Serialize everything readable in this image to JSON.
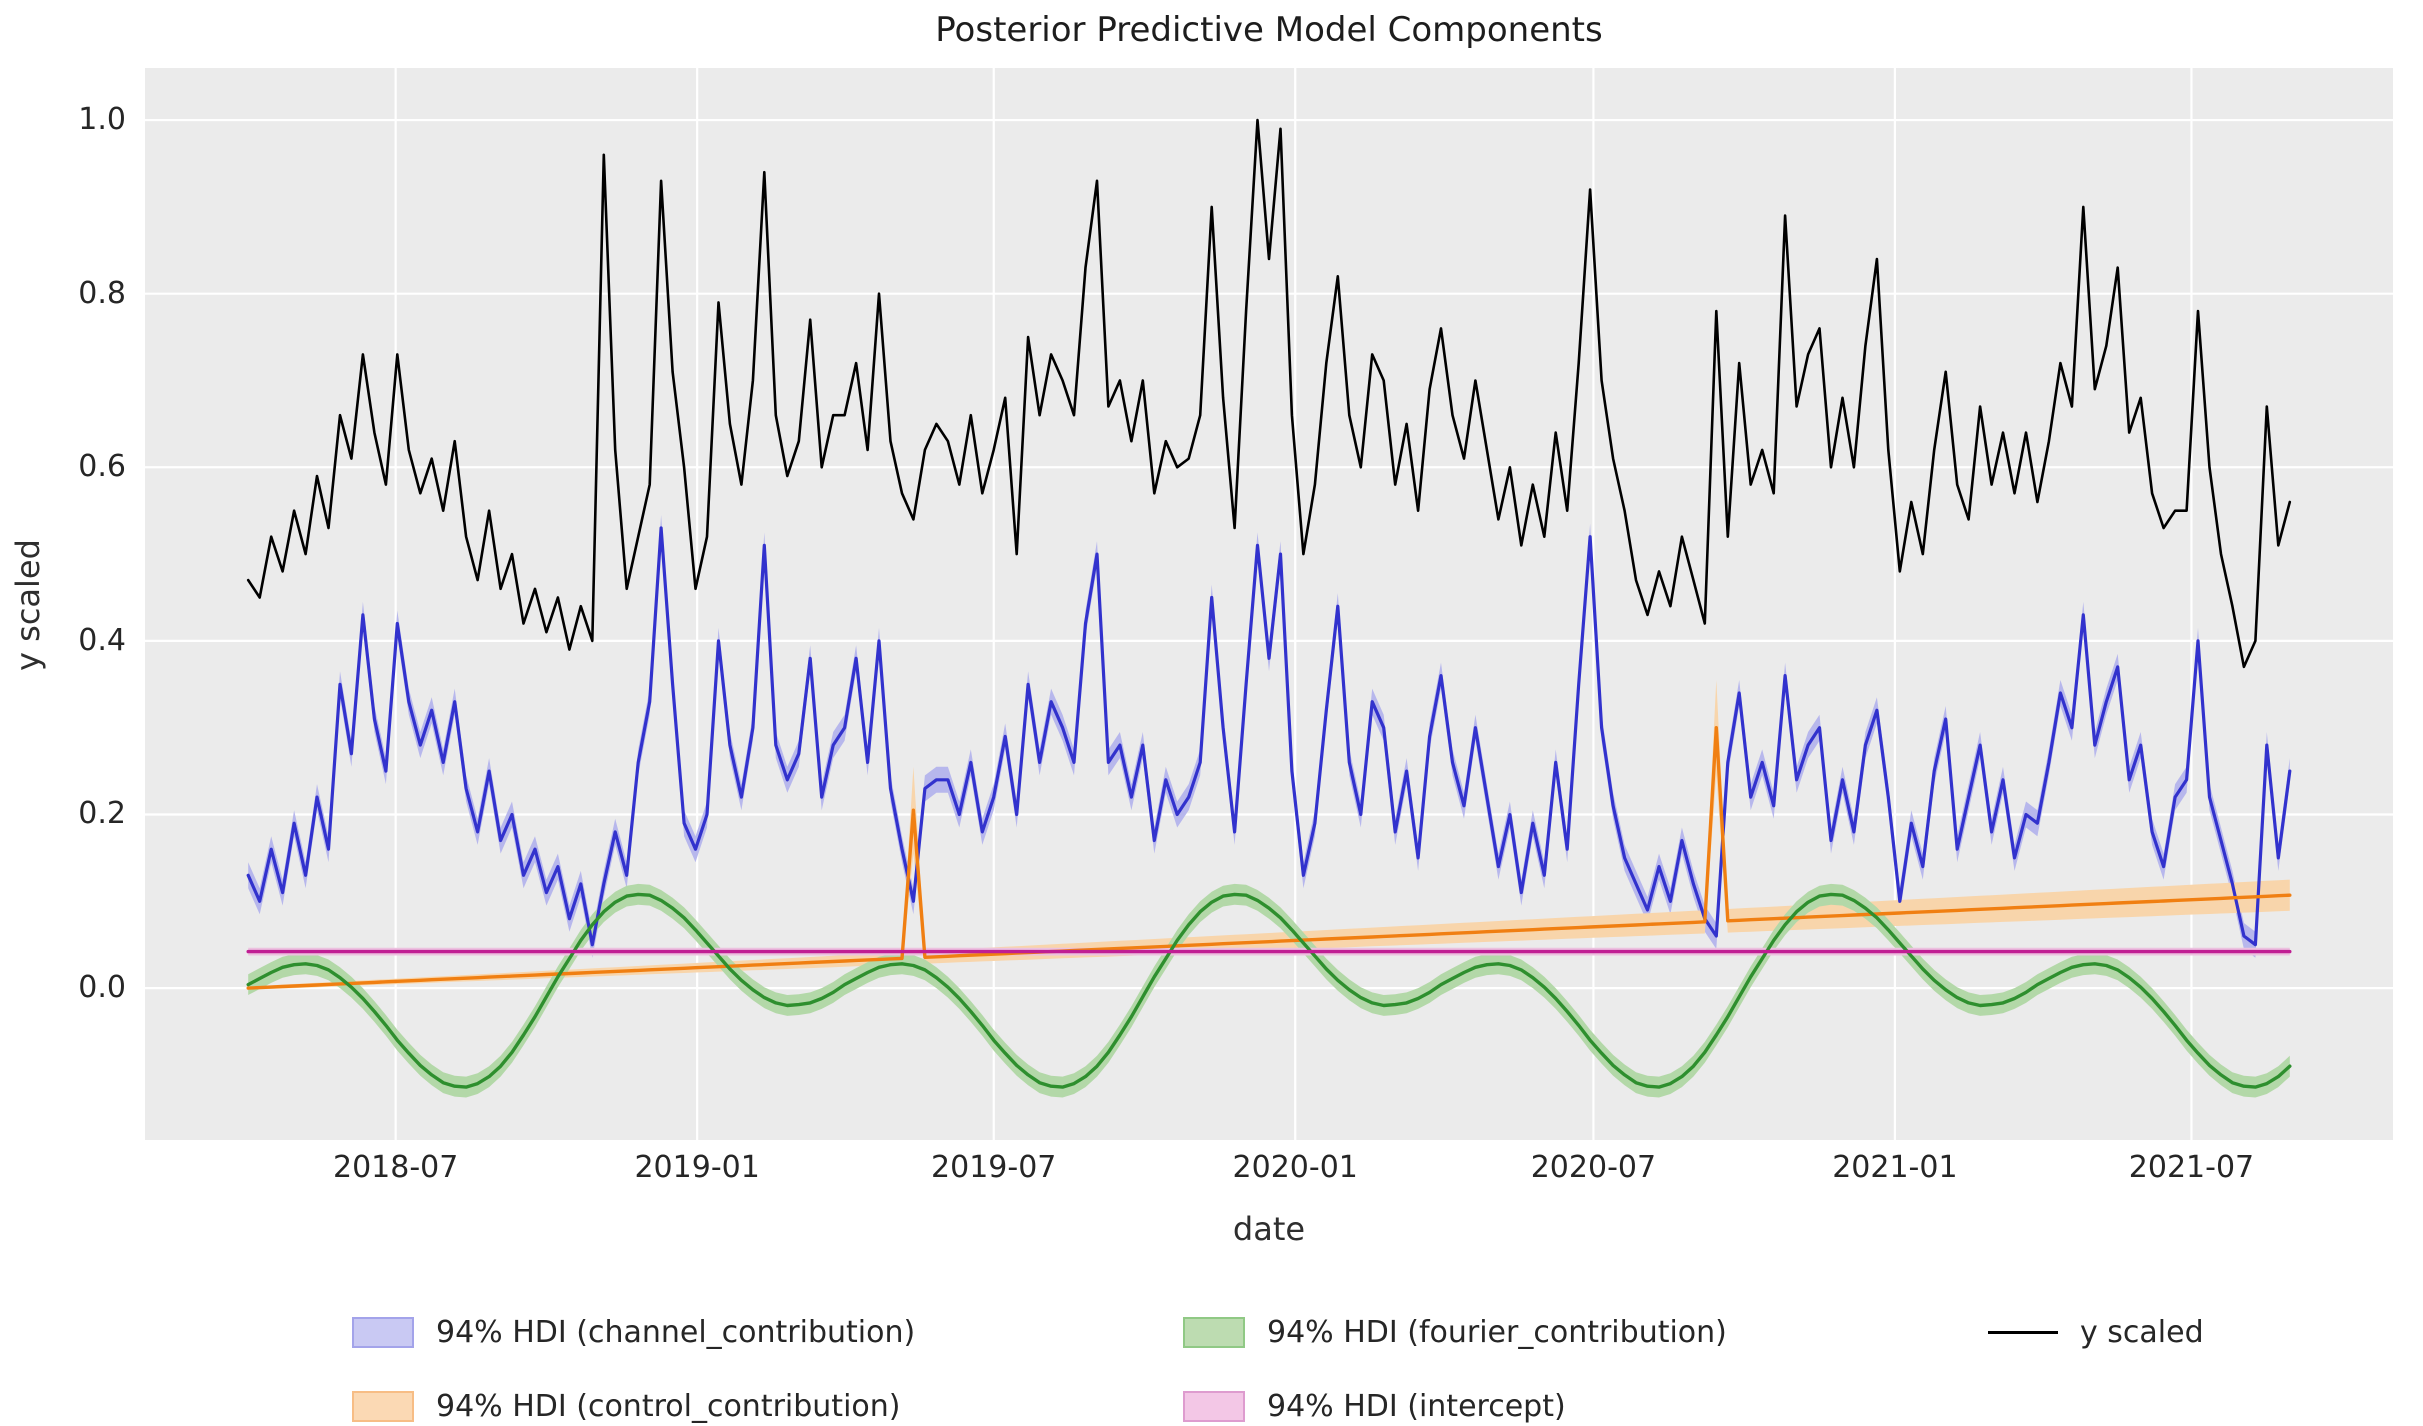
{
  "title": "Posterior Predictive Model Components",
  "axes": {
    "xlabel": "date",
    "ylabel": "y scaled",
    "plot_bg": "#ebebeb",
    "grid_color": "#ffffff",
    "text_color": "#262626",
    "xlim_days": [
      -63,
      1309
    ],
    "ylim": [
      -0.175,
      1.06
    ],
    "x_ticks": [
      {
        "day": 90,
        "label": "2018-07"
      },
      {
        "day": 274,
        "label": "2019-01"
      },
      {
        "day": 455,
        "label": "2019-07"
      },
      {
        "day": 639,
        "label": "2020-01"
      },
      {
        "day": 821,
        "label": "2020-07"
      },
      {
        "day": 1005,
        "label": "2021-01"
      },
      {
        "day": 1186,
        "label": "2021-07"
      }
    ],
    "y_ticks": [
      {
        "v": 1.0,
        "label": "1.0"
      },
      {
        "v": 0.8,
        "label": "0.8"
      },
      {
        "v": 0.6,
        "label": "0.6"
      },
      {
        "v": 0.4,
        "label": "0.4"
      },
      {
        "v": 0.2,
        "label": "0.2"
      },
      {
        "v": 0.0,
        "label": "0.0"
      }
    ]
  },
  "chart_data": {
    "type": "line",
    "title": "Posterior Predictive Model Components",
    "xlabel": "date",
    "ylabel": "y scaled",
    "grid": true,
    "legend_position": "below",
    "x": {
      "start_date": "2018-04-02",
      "interval_days": 7,
      "n": 179
    },
    "series": [
      {
        "name": "y scaled",
        "kind": "line",
        "color": "#000000",
        "linewidth": 2.6,
        "values": [
          0.47,
          0.45,
          0.52,
          0.48,
          0.55,
          0.5,
          0.59,
          0.53,
          0.66,
          0.61,
          0.73,
          0.64,
          0.58,
          0.73,
          0.62,
          0.57,
          0.61,
          0.55,
          0.63,
          0.52,
          0.47,
          0.55,
          0.46,
          0.5,
          0.42,
          0.46,
          0.41,
          0.45,
          0.39,
          0.44,
          0.4,
          0.96,
          0.62,
          0.46,
          0.52,
          0.58,
          0.93,
          0.71,
          0.6,
          0.46,
          0.52,
          0.79,
          0.65,
          0.58,
          0.7,
          0.94,
          0.66,
          0.59,
          0.63,
          0.77,
          0.6,
          0.66,
          0.66,
          0.72,
          0.62,
          0.8,
          0.63,
          0.57,
          0.54,
          0.62,
          0.65,
          0.63,
          0.58,
          0.66,
          0.57,
          0.62,
          0.68,
          0.5,
          0.75,
          0.66,
          0.73,
          0.7,
          0.66,
          0.83,
          0.93,
          0.67,
          0.7,
          0.63,
          0.7,
          0.57,
          0.63,
          0.6,
          0.61,
          0.66,
          0.9,
          0.68,
          0.53,
          0.78,
          1.0,
          0.84,
          0.99,
          0.66,
          0.5,
          0.58,
          0.72,
          0.82,
          0.66,
          0.6,
          0.73,
          0.7,
          0.58,
          0.65,
          0.55,
          0.69,
          0.76,
          0.66,
          0.61,
          0.7,
          0.62,
          0.54,
          0.6,
          0.51,
          0.58,
          0.52,
          0.64,
          0.55,
          0.72,
          0.92,
          0.7,
          0.61,
          0.55,
          0.47,
          0.43,
          0.48,
          0.44,
          0.52,
          0.47,
          0.42,
          0.78,
          0.52,
          0.72,
          0.58,
          0.62,
          0.57,
          0.89,
          0.67,
          0.73,
          0.76,
          0.6,
          0.68,
          0.6,
          0.74,
          0.84,
          0.62,
          0.48,
          0.56,
          0.5,
          0.62,
          0.71,
          0.58,
          0.54,
          0.67,
          0.58,
          0.64,
          0.57,
          0.64,
          0.56,
          0.63,
          0.72,
          0.67,
          0.9,
          0.69,
          0.74,
          0.83,
          0.64,
          0.68,
          0.57,
          0.53,
          0.55,
          0.55,
          0.78,
          0.6,
          0.5,
          0.44,
          0.37,
          0.4,
          0.67,
          0.51,
          0.56
        ]
      },
      {
        "name": "94% HDI (channel_contribution)",
        "kind": "band+line",
        "line_color": "#3232cd",
        "band_color": "#b7b7ec",
        "linewidth": 3.2,
        "hdi_halfwidth": 0.015,
        "values": [
          0.13,
          0.1,
          0.16,
          0.11,
          0.19,
          0.13,
          0.22,
          0.16,
          0.35,
          0.27,
          0.43,
          0.31,
          0.25,
          0.42,
          0.33,
          0.28,
          0.32,
          0.26,
          0.33,
          0.23,
          0.18,
          0.25,
          0.17,
          0.2,
          0.13,
          0.16,
          0.11,
          0.14,
          0.08,
          0.12,
          0.05,
          0.12,
          0.18,
          0.13,
          0.26,
          0.33,
          0.53,
          0.35,
          0.19,
          0.16,
          0.2,
          0.4,
          0.28,
          0.22,
          0.3,
          0.51,
          0.28,
          0.24,
          0.27,
          0.38,
          0.22,
          0.28,
          0.3,
          0.38,
          0.26,
          0.4,
          0.23,
          0.16,
          0.1,
          0.23,
          0.24,
          0.24,
          0.2,
          0.26,
          0.18,
          0.22,
          0.29,
          0.2,
          0.35,
          0.26,
          0.33,
          0.3,
          0.26,
          0.42,
          0.5,
          0.26,
          0.28,
          0.22,
          0.28,
          0.17,
          0.24,
          0.2,
          0.22,
          0.26,
          0.45,
          0.3,
          0.18,
          0.35,
          0.51,
          0.38,
          0.5,
          0.25,
          0.13,
          0.19,
          0.32,
          0.44,
          0.26,
          0.2,
          0.33,
          0.3,
          0.18,
          0.25,
          0.15,
          0.29,
          0.36,
          0.26,
          0.21,
          0.3,
          0.22,
          0.14,
          0.2,
          0.11,
          0.19,
          0.13,
          0.26,
          0.16,
          0.35,
          0.52,
          0.3,
          0.21,
          0.15,
          0.12,
          0.09,
          0.14,
          0.1,
          0.17,
          0.12,
          0.08,
          0.06,
          0.26,
          0.34,
          0.22,
          0.26,
          0.21,
          0.36,
          0.24,
          0.28,
          0.3,
          0.17,
          0.24,
          0.18,
          0.28,
          0.32,
          0.22,
          0.1,
          0.19,
          0.14,
          0.25,
          0.31,
          0.16,
          0.22,
          0.28,
          0.18,
          0.24,
          0.15,
          0.2,
          0.19,
          0.26,
          0.34,
          0.3,
          0.43,
          0.28,
          0.33,
          0.37,
          0.24,
          0.28,
          0.18,
          0.14,
          0.22,
          0.24,
          0.4,
          0.22,
          0.17,
          0.12,
          0.06,
          0.05,
          0.28,
          0.15,
          0.25
        ]
      },
      {
        "name": "94% HDI (control_contribution)",
        "kind": "band+line",
        "line_color": "#f07f12",
        "band_color": "#f8d5ab",
        "linewidth": 3.4,
        "trend": {
          "start": 0.0,
          "end": 0.107
        },
        "hdi_halfwidth": {
          "start": 0.002,
          "end": 0.018
        },
        "spikes": [
          {
            "index": 58,
            "date": "2019-05-13",
            "value": 0.205,
            "hdi_halfwidth": 0.05
          },
          {
            "index": 128,
            "date": "2020-09-14",
            "value": 0.3,
            "hdi_halfwidth": 0.055
          }
        ]
      },
      {
        "name": "94% HDI (fourier_contribution)",
        "kind": "band+line",
        "line_color": "#2e8f2e",
        "band_color": "#b3d8a8",
        "linewidth": 3.4,
        "hdi_halfwidth": 0.012,
        "values": [
          0.004,
          0.011,
          0.018,
          0.024,
          0.027,
          0.028,
          0.026,
          0.021,
          0.012,
          0.001,
          -0.012,
          -0.027,
          -0.043,
          -0.06,
          -0.075,
          -0.089,
          -0.1,
          -0.109,
          -0.113,
          -0.114,
          -0.11,
          -0.102,
          -0.09,
          -0.074,
          -0.054,
          -0.033,
          -0.01,
          0.013,
          0.034,
          0.055,
          0.073,
          0.088,
          0.099,
          0.106,
          0.108,
          0.107,
          0.101,
          0.092,
          0.081,
          0.067,
          0.052,
          0.037,
          0.022,
          0.009,
          -0.002,
          -0.011,
          -0.017,
          -0.02,
          -0.019,
          -0.017,
          -0.012,
          -0.005,
          0.004,
          0.011,
          0.018,
          0.024,
          0.027,
          0.028,
          0.026,
          0.021,
          0.012,
          0.001,
          -0.012,
          -0.027,
          -0.043,
          -0.06,
          -0.075,
          -0.089,
          -0.1,
          -0.109,
          -0.113,
          -0.114,
          -0.11,
          -0.102,
          -0.09,
          -0.074,
          -0.054,
          -0.033,
          -0.01,
          0.013,
          0.034,
          0.055,
          0.073,
          0.088,
          0.099,
          0.106,
          0.108,
          0.107,
          0.101,
          0.092,
          0.081,
          0.067,
          0.052,
          0.037,
          0.022,
          0.009,
          -0.002,
          -0.011,
          -0.017,
          -0.02,
          -0.019,
          -0.017,
          -0.012,
          -0.005,
          0.004,
          0.011,
          0.018,
          0.024,
          0.027,
          0.028,
          0.026,
          0.021,
          0.012,
          0.001,
          -0.012,
          -0.027,
          -0.043,
          -0.06,
          -0.075,
          -0.089,
          -0.1,
          -0.109,
          -0.113,
          -0.114,
          -0.11,
          -0.102,
          -0.09,
          -0.074,
          -0.054,
          -0.033,
          -0.01,
          0.013,
          0.034,
          0.055,
          0.073,
          0.088,
          0.099,
          0.106,
          0.108,
          0.107,
          0.101,
          0.092,
          0.081,
          0.067,
          0.052,
          0.037,
          0.022,
          0.009,
          -0.002,
          -0.011,
          -0.017,
          -0.02,
          -0.019,
          -0.017,
          -0.012,
          -0.005,
          0.004,
          0.011,
          0.018,
          0.024,
          0.027,
          0.028,
          0.026,
          0.021,
          0.012,
          0.001,
          -0.012,
          -0.027,
          -0.043,
          -0.06,
          -0.075,
          -0.089,
          -0.1,
          -0.109,
          -0.113,
          -0.114,
          -0.11,
          -0.102,
          -0.09
        ]
      },
      {
        "name": "94% HDI (intercept)",
        "kind": "band+line",
        "line_color": "#c01e93",
        "band_color": "#ecc1df",
        "linewidth": 3.4,
        "constant": 0.042,
        "hdi_halfwidth": 0.0045
      }
    ]
  },
  "legend": {
    "entries": [
      {
        "label": "94% HDI (channel_contribution)",
        "type": "patch",
        "fill": "#c9c9f3",
        "edge": "#a3a3ea"
      },
      {
        "label": "94% HDI (control_contribution)",
        "type": "patch",
        "fill": "#fbd9b4",
        "edge": "#f7bd85"
      },
      {
        "label": "94% HDI (fourier_contribution)",
        "type": "patch",
        "fill": "#bddcb1",
        "edge": "#90c985"
      },
      {
        "label": "94% HDI (intercept)",
        "type": "patch",
        "fill": "#f3c7e6",
        "edge": "#de9ccf"
      },
      {
        "label": "y scaled",
        "type": "line",
        "color": "#000000"
      }
    ]
  }
}
